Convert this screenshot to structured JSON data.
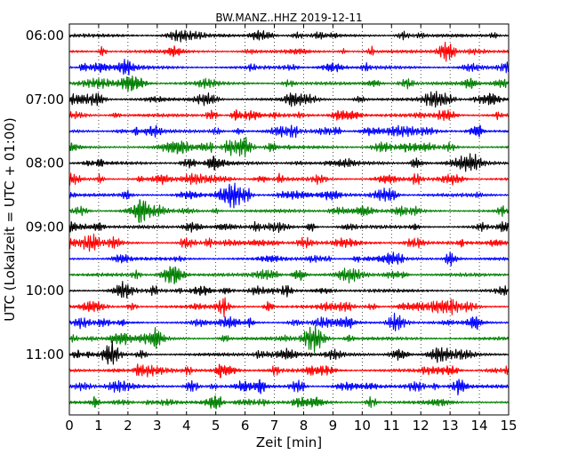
{
  "chart_data": {
    "type": "line",
    "title": "BW.MANZ..HHZ 2019-12-11",
    "xlabel": "Zeit  [min]",
    "ylabel": "UTC (Lokalzeit = UTC + 01:00)",
    "xlim": [
      0,
      15
    ],
    "x_ticks": [
      "0",
      "1",
      "2",
      "3",
      "4",
      "5",
      "6",
      "7",
      "8",
      "9",
      "10",
      "11",
      "12",
      "13",
      "14",
      "15"
    ],
    "y_tick_labels": [
      "06:00",
      "07:00",
      "08:00",
      "09:00",
      "10:00",
      "11:00"
    ],
    "traces_per_hour": 4,
    "trace_count": 24,
    "trace_colors": [
      "#000000",
      "#ff0000",
      "#0000ff",
      "#008000"
    ],
    "grid": "vertical dotted at each minute"
  }
}
